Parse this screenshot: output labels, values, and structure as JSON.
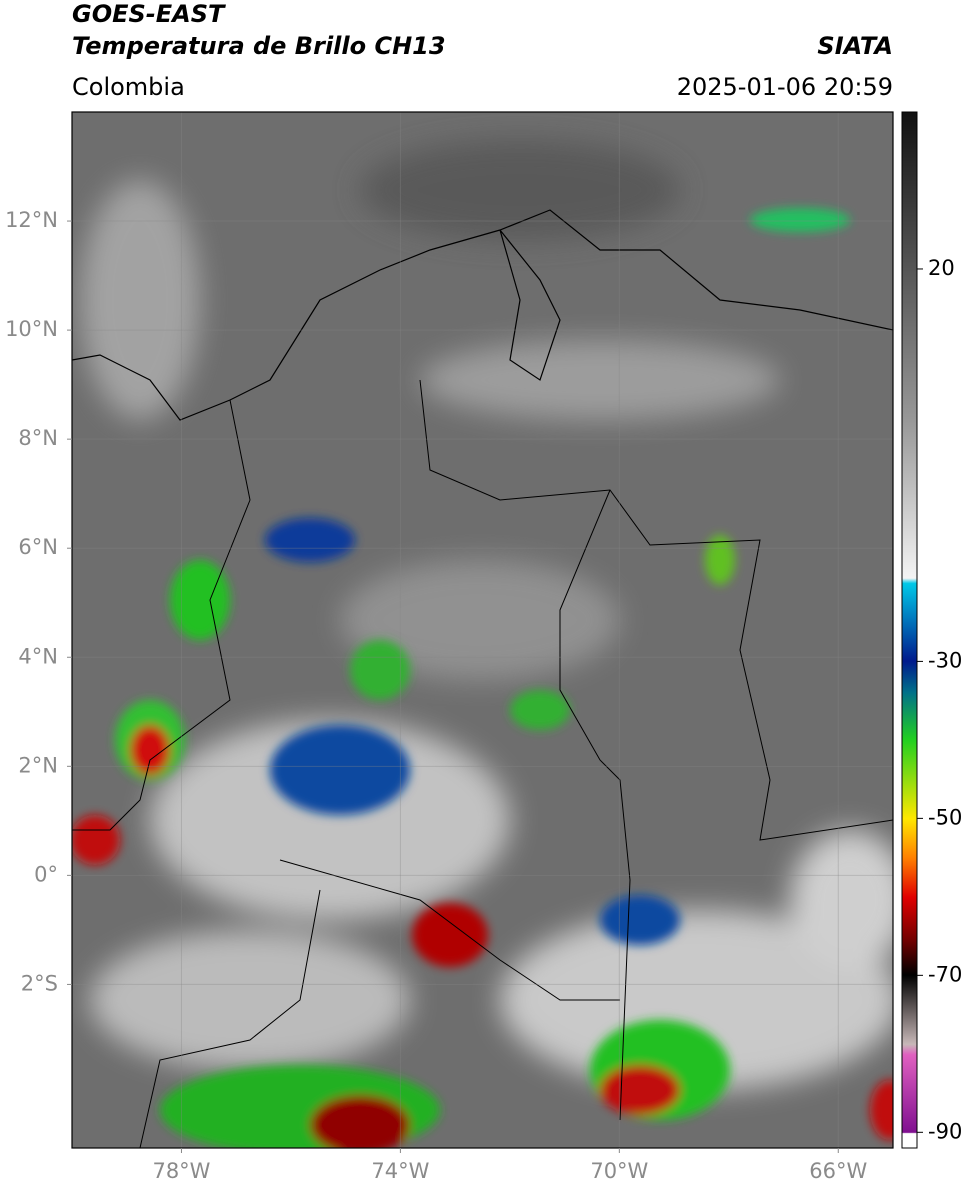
{
  "header": {
    "title": "GOES-EAST",
    "subtitle": "Temperatura de Brillo CH13",
    "source": "SIATA",
    "region": "Colombia",
    "datetime": "2025-01-06 20:59"
  },
  "map": {
    "lonlim": [
      -80,
      -65
    ],
    "latlim": [
      -5,
      14
    ],
    "lat_ticks": [
      {
        "value": 12,
        "label": "12°N"
      },
      {
        "value": 10,
        "label": "10°N"
      },
      {
        "value": 8,
        "label": "8°N"
      },
      {
        "value": 6,
        "label": "6°N"
      },
      {
        "value": 4,
        "label": "4°N"
      },
      {
        "value": 2,
        "label": "2°N"
      },
      {
        "value": 0,
        "label": "0°"
      },
      {
        "value": -2,
        "label": "2°S"
      }
    ],
    "lon_ticks": [
      {
        "value": -78,
        "label": "78°W"
      },
      {
        "value": -74,
        "label": "74°W"
      },
      {
        "value": -70,
        "label": "70°W"
      },
      {
        "value": -66,
        "label": "66°W"
      }
    ]
  },
  "colorbar": {
    "lim": [
      -92,
      40
    ],
    "ticks": [
      20,
      -30,
      -50,
      -70,
      -90
    ]
  }
}
